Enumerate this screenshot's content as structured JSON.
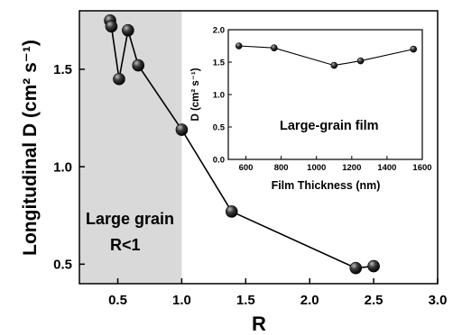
{
  "chart_data": [
    {
      "type": "line",
      "xlabel": "R",
      "ylabel": "Longitudinal D (cm² s⁻¹)",
      "xlim": [
        0.2,
        3.0
      ],
      "ylim": [
        0.4,
        1.8
      ],
      "xticks": [
        0.5,
        1.0,
        1.5,
        2.0,
        2.5,
        3.0
      ],
      "xtick_labels": [
        "0.5",
        "1.0",
        "1.5",
        "2.0",
        "2.5",
        "3.0"
      ],
      "yticks": [
        0.5,
        1.0,
        1.5
      ],
      "ytick_labels": [
        "0.5",
        "1.0",
        "1.5"
      ],
      "grid": false,
      "shaded_region": {
        "x_from": 0.2,
        "x_to": 1.0,
        "color": "#d9d9d9"
      },
      "annotations": [
        "Large grain",
        "R<1"
      ],
      "series": [
        {
          "x": [
            0.44,
            0.45,
            0.51,
            0.58,
            0.66,
            1.0,
            1.39,
            2.36,
            2.5
          ],
          "y": [
            1.75,
            1.72,
            1.45,
            1.7,
            1.52,
            1.19,
            0.77,
            0.48,
            0.49
          ]
        }
      ]
    },
    {
      "type": "line",
      "title": "",
      "xlabel": "Film Thickness (nm)",
      "ylabel": "D (cm² s⁻¹)",
      "xlim": [
        500,
        1600
      ],
      "ylim": [
        0.0,
        2.0
      ],
      "xticks": [
        600,
        800,
        1000,
        1200,
        1400,
        1600
      ],
      "xtick_labels": [
        "600",
        "800",
        "1000",
        "1200",
        "1400",
        "1600"
      ],
      "yticks": [
        0.0,
        0.5,
        1.0,
        1.5,
        2.0
      ],
      "ytick_labels": [
        "0.0",
        "0.5",
        "1.0",
        "1.5",
        "2.0"
      ],
      "grid": false,
      "legend": "none",
      "annotations": [
        "Large-grain film"
      ],
      "series": [
        {
          "x": [
            560,
            760,
            1100,
            1250,
            1550
          ],
          "y": [
            1.75,
            1.72,
            1.45,
            1.52,
            1.7
          ]
        }
      ]
    }
  ],
  "colors": {
    "line": "#000000",
    "marker": "#222222",
    "shade": "#d9d9d9"
  }
}
